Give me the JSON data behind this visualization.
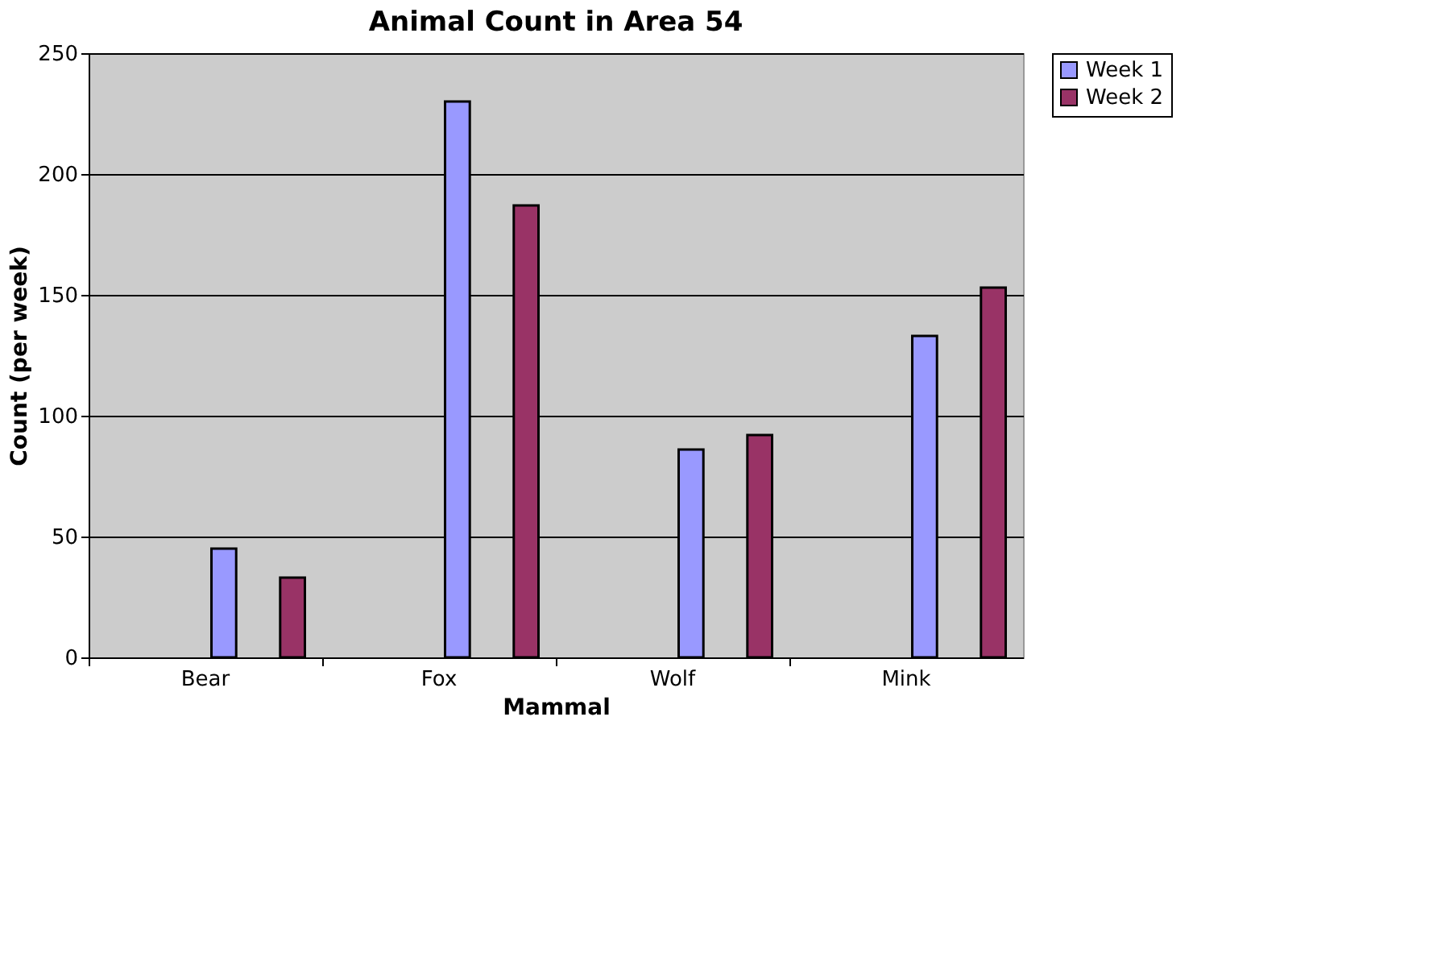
{
  "chart_data": {
    "type": "bar",
    "title": "Animal Count in Area 54",
    "xlabel": "Mammal",
    "ylabel": "Count (per week)",
    "categories": [
      "Bear",
      "Fox",
      "Wolf",
      "Mink"
    ],
    "series": [
      {
        "name": "Week 1",
        "color": "#9999ff",
        "values": [
          45,
          230,
          86,
          133
        ]
      },
      {
        "name": "Week 2",
        "color": "#993366",
        "values": [
          33,
          187,
          92,
          153
        ]
      }
    ],
    "ylim": [
      0,
      250
    ],
    "yticks": [
      0,
      50,
      100,
      150,
      200,
      250
    ],
    "grid": "y",
    "legend": "right"
  }
}
